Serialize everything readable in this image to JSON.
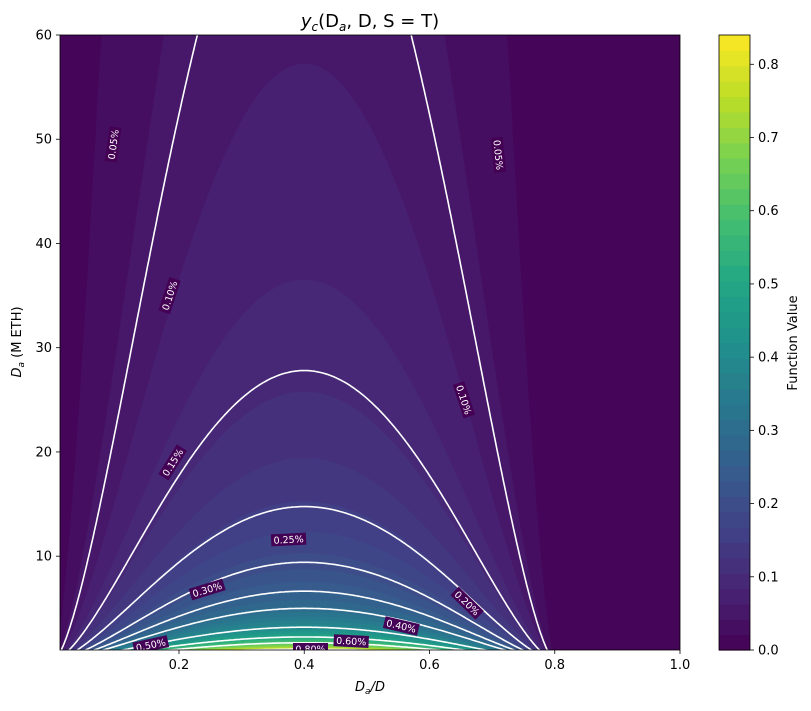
{
  "chart_data": {
    "type": "heatmap",
    "subtype": "filled-contour",
    "title": {
      "main": "y",
      "sub": "c",
      "args": "(D",
      "args_sub": "a",
      "rest": ", D, S = T)"
    },
    "xlabel": {
      "main": "D",
      "sub": "a",
      "rest": "/D"
    },
    "ylabel": {
      "main": "D",
      "sub": "a",
      "rest": " (M ETH)"
    },
    "xlim": [
      0.01,
      1.0
    ],
    "ylim": [
      1,
      60
    ],
    "x_ticks": [
      "0.2",
      "0.4",
      "0.6",
      "0.8",
      "1.0"
    ],
    "x_tick_values": [
      0.2,
      0.4,
      0.6,
      0.8,
      1.0
    ],
    "y_ticks": [
      "10",
      "20",
      "30",
      "40",
      "50",
      "60"
    ],
    "y_tick_values": [
      10,
      20,
      30,
      40,
      50,
      60
    ],
    "colormap": "viridis",
    "colorbar": {
      "label": "Function Value",
      "range": [
        0.0,
        0.84
      ],
      "ticks": [
        "0.0",
        "0.1",
        "0.2",
        "0.3",
        "0.4",
        "0.5",
        "0.6",
        "0.7",
        "0.8"
      ],
      "tick_values": [
        0.0,
        0.1,
        0.2,
        0.3,
        0.4,
        0.5,
        0.6,
        0.7,
        0.8
      ]
    },
    "peak_x": 0.4,
    "zero_beyond_x": 0.8,
    "contour_lines": [
      {
        "level": 0.05,
        "label": "0.05%"
      },
      {
        "level": 0.1,
        "label": "0.10%"
      },
      {
        "level": 0.15,
        "label": "0.15%"
      },
      {
        "level": 0.2,
        "label": "0.20%"
      },
      {
        "level": 0.25,
        "label": "0.25%"
      },
      {
        "level": 0.3,
        "label": "0.30%"
      },
      {
        "level": 0.4,
        "label": "0.40%"
      },
      {
        "level": 0.5,
        "label": "0.50%"
      },
      {
        "level": 0.6,
        "label": "0.60%"
      },
      {
        "level": 0.8,
        "label": "0.80%"
      }
    ],
    "contour_label_positions": [
      {
        "text": "0.05%",
        "x": 0.095,
        "y": 49.5,
        "angle": -82
      },
      {
        "text": "0.05%",
        "x": 0.71,
        "y": 48.5,
        "angle": 84
      },
      {
        "text": "0.10%",
        "x": 0.185,
        "y": 35.0,
        "angle": -72
      },
      {
        "text": "0.10%",
        "x": 0.655,
        "y": 25.0,
        "angle": 72
      },
      {
        "text": "0.15%",
        "x": 0.19,
        "y": 19.0,
        "angle": -58
      },
      {
        "text": "0.20%",
        "x": 0.66,
        "y": 5.5,
        "angle": 44
      },
      {
        "text": "0.25%",
        "x": 0.375,
        "y": 11.6,
        "angle": -3
      },
      {
        "text": "0.30%",
        "x": 0.245,
        "y": 6.8,
        "angle": -17
      },
      {
        "text": "0.40%",
        "x": 0.555,
        "y": 3.3,
        "angle": 13
      },
      {
        "text": "0.50%",
        "x": 0.155,
        "y": 1.5,
        "angle": -12
      },
      {
        "text": "0.60%",
        "x": 0.475,
        "y": 1.85,
        "angle": 3
      },
      {
        "text": "0.80%",
        "x": 0.41,
        "y": 1.1,
        "angle": 0
      }
    ]
  }
}
